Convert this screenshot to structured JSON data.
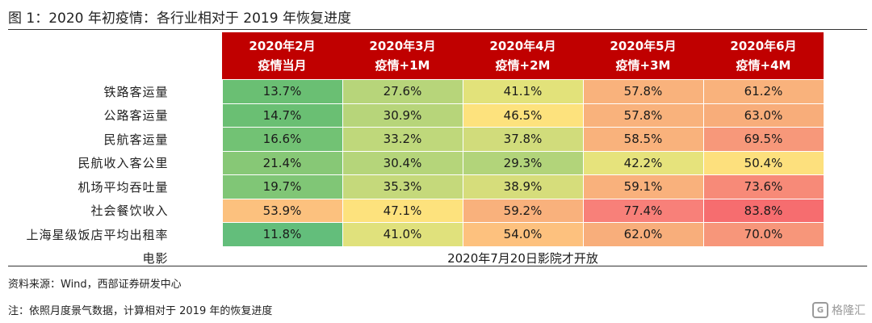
{
  "title": "图 1：2020 年初疫情：各行业相对于 2019 年恢复进度",
  "columns": [
    {
      "line1": "2020年2月",
      "line2": "疫情当月"
    },
    {
      "line1": "2020年3月",
      "line2": "疫情+1M"
    },
    {
      "line1": "2020年4月",
      "line2": "疫情+2M"
    },
    {
      "line1": "2020年5月",
      "line2": "疫情+3M"
    },
    {
      "line1": "2020年6月",
      "line2": "疫情+4M"
    }
  ],
  "rows": [
    {
      "label": "铁路客运量",
      "values": [
        "13.7%",
        "27.6%",
        "41.1%",
        "57.8%",
        "61.2%"
      ],
      "colors": [
        "#6abf73",
        "#b7d57a",
        "#e2e27a",
        "#f9b27c",
        "#f9b27c"
      ]
    },
    {
      "label": "公路客运量",
      "values": [
        "14.7%",
        "30.9%",
        "46.5%",
        "57.8%",
        "63.0%"
      ],
      "colors": [
        "#6abf73",
        "#b7d57a",
        "#fde27d",
        "#f9b27c",
        "#f8ad7a"
      ]
    },
    {
      "label": "民航客运量",
      "values": [
        "16.6%",
        "33.2%",
        "37.8%",
        "58.5%",
        "69.5%"
      ],
      "colors": [
        "#72c274",
        "#bfd87b",
        "#d1dc7b",
        "#f9b27c",
        "#f7987a"
      ]
    },
    {
      "label": "民航收入客公里",
      "values": [
        "21.4%",
        "30.4%",
        "29.3%",
        "42.2%",
        "50.4%"
      ],
      "colors": [
        "#87c876",
        "#b5d57a",
        "#b2d47a",
        "#e6e37c",
        "#fde07d"
      ]
    },
    {
      "label": "机场平均吞吐量",
      "values": [
        "19.7%",
        "35.3%",
        "38.9%",
        "59.1%",
        "73.6%"
      ],
      "colors": [
        "#80c676",
        "#c5d97b",
        "#d6dd7b",
        "#f9b17c",
        "#f78a78"
      ]
    },
    {
      "label": "社会餐饮收入",
      "values": [
        "53.9%",
        "47.1%",
        "59.2%",
        "77.4%",
        "83.8%"
      ],
      "colors": [
        "#fcc17e",
        "#fde27d",
        "#f9b17c",
        "#f88079",
        "#f66d6f"
      ]
    },
    {
      "label": "上海星级饭店平均出租率",
      "values": [
        "11.8%",
        "41.0%",
        "54.0%",
        "62.0%",
        "70.0%"
      ],
      "colors": [
        "#63be7b",
        "#e0e17c",
        "#fdc17e",
        "#f8ae7b",
        "#f7967a"
      ]
    }
  ],
  "movie_row": {
    "label": "电影",
    "note": "2020年7月20日影院才开放"
  },
  "source": "资料来源：Wind，西部证券研发中心",
  "note": "注：依照月度景气数据，计算相对于 2019 年的恢复进度",
  "watermark": "格隆汇"
}
